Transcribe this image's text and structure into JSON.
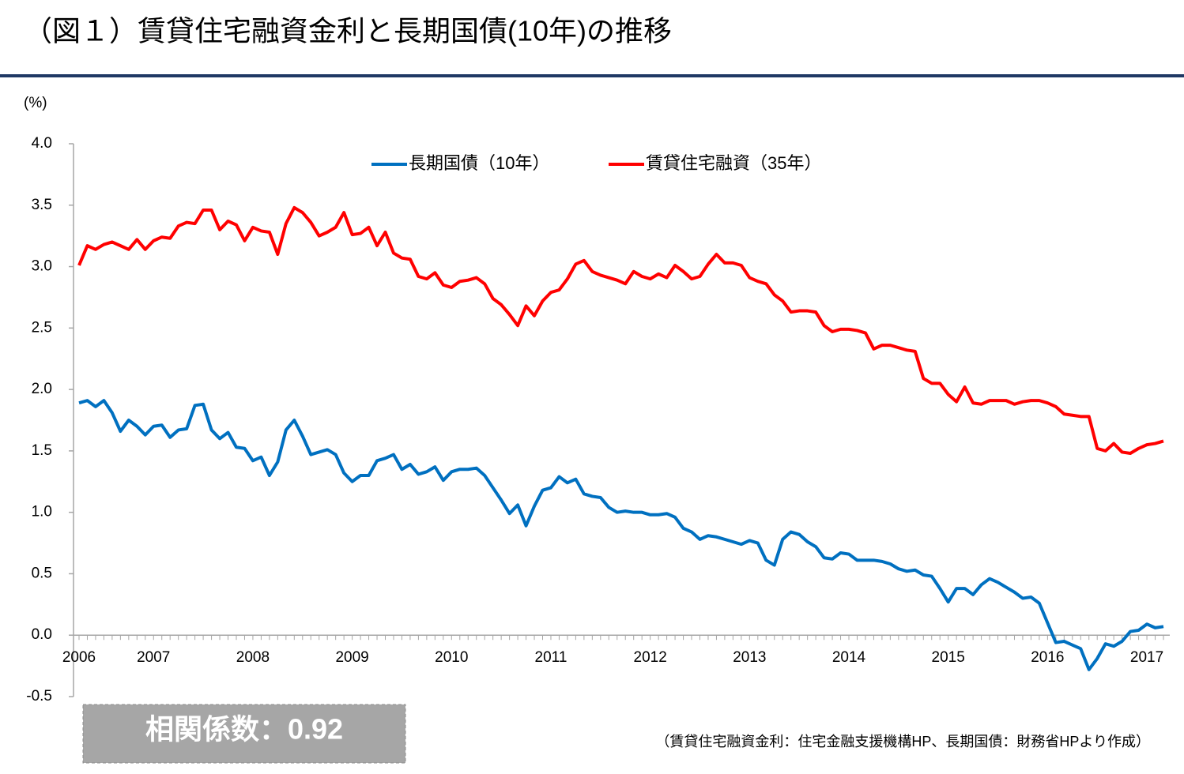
{
  "chart_data": {
    "type": "line",
    "title": "（図１）賃貸住宅融資金利と長期国債(10年)の推移",
    "y_unit": "(%)",
    "annotation": "相関係数：0.92",
    "source": "（賃貸住宅融資金利：住宅金融支援機構HP、長期国債：財務省HPより作成）",
    "legend": "top",
    "categories": [
      "2006",
      null,
      null,
      null,
      null,
      null,
      null,
      null,
      null,
      "2007",
      null,
      null,
      null,
      null,
      null,
      null,
      null,
      null,
      null,
      null,
      null,
      "2008",
      null,
      null,
      null,
      null,
      null,
      null,
      null,
      null,
      null,
      null,
      null,
      "2009",
      null,
      null,
      null,
      null,
      null,
      null,
      null,
      null,
      null,
      null,
      null,
      "2010",
      null,
      null,
      null,
      null,
      null,
      null,
      null,
      null,
      null,
      null,
      null,
      "2011",
      null,
      null,
      null,
      null,
      null,
      null,
      null,
      null,
      null,
      null,
      null,
      "2012",
      null,
      null,
      null,
      null,
      null,
      null,
      null,
      null,
      null,
      null,
      null,
      "2013",
      null,
      null,
      null,
      null,
      null,
      null,
      null,
      null,
      null,
      null,
      null,
      "2014",
      null,
      null,
      null,
      null,
      null,
      null,
      null,
      null,
      null,
      null,
      null,
      "2015",
      null,
      null,
      null,
      null,
      null,
      null,
      null,
      null,
      null,
      null,
      null,
      "2016",
      null,
      null,
      null,
      null,
      null,
      null,
      null,
      null,
      null,
      null,
      null,
      "2017",
      null,
      null
    ],
    "series": [
      {
        "name": "長期国債（10年）",
        "color": "#0070c0",
        "values": [
          1.89,
          1.91,
          1.86,
          1.91,
          1.81,
          1.66,
          1.75,
          1.7,
          1.63,
          1.7,
          1.71,
          1.61,
          1.67,
          1.68,
          1.87,
          1.88,
          1.67,
          1.6,
          1.65,
          1.53,
          1.52,
          1.42,
          1.45,
          1.3,
          1.41,
          1.67,
          1.75,
          1.62,
          1.47,
          1.49,
          1.51,
          1.47,
          1.32,
          1.25,
          1.3,
          1.3,
          1.42,
          1.44,
          1.47,
          1.35,
          1.39,
          1.31,
          1.33,
          1.37,
          1.26,
          1.33,
          1.35,
          1.35,
          1.36,
          1.3,
          1.2,
          1.1,
          0.99,
          1.06,
          0.89,
          1.05,
          1.18,
          1.2,
          1.29,
          1.24,
          1.27,
          1.15,
          1.13,
          1.12,
          1.04,
          1.0,
          1.01,
          1.0,
          1.0,
          0.98,
          0.98,
          0.99,
          0.96,
          0.87,
          0.84,
          0.78,
          0.81,
          0.8,
          0.78,
          0.76,
          0.74,
          0.77,
          0.75,
          0.61,
          0.57,
          0.78,
          0.84,
          0.82,
          0.76,
          0.72,
          0.63,
          0.62,
          0.67,
          0.66,
          0.61,
          0.61,
          0.61,
          0.6,
          0.58,
          0.54,
          0.52,
          0.53,
          0.49,
          0.48,
          0.38,
          0.27,
          0.38,
          0.38,
          0.33,
          0.41,
          0.46,
          0.43,
          0.39,
          0.35,
          0.3,
          0.31,
          0.26,
          0.1,
          -0.06,
          -0.05,
          -0.08,
          -0.11,
          -0.28,
          -0.19,
          -0.07,
          -0.09,
          -0.05,
          0.03,
          0.04,
          0.09,
          0.06,
          0.07
        ]
      },
      {
        "name": "賃貸住宅融資（35年）",
        "color": "#ff0000",
        "values": [
          3.01,
          3.17,
          3.14,
          3.18,
          3.2,
          3.17,
          3.14,
          3.22,
          3.14,
          3.21,
          3.24,
          3.23,
          3.33,
          3.36,
          3.35,
          3.46,
          3.46,
          3.3,
          3.37,
          3.34,
          3.21,
          3.32,
          3.29,
          3.28,
          3.1,
          3.35,
          3.48,
          3.44,
          3.36,
          3.25,
          3.28,
          3.32,
          3.44,
          3.26,
          3.27,
          3.32,
          3.17,
          3.28,
          3.11,
          3.07,
          3.06,
          2.92,
          2.9,
          2.95,
          2.85,
          2.83,
          2.88,
          2.89,
          2.91,
          2.86,
          2.74,
          2.69,
          2.61,
          2.52,
          2.68,
          2.6,
          2.72,
          2.79,
          2.81,
          2.9,
          3.02,
          3.05,
          2.96,
          2.93,
          2.91,
          2.89,
          2.86,
          2.96,
          2.92,
          2.9,
          2.94,
          2.91,
          3.01,
          2.96,
          2.9,
          2.92,
          3.02,
          3.1,
          3.03,
          3.03,
          3.01,
          2.91,
          2.88,
          2.86,
          2.77,
          2.72,
          2.63,
          2.64,
          2.64,
          2.63,
          2.52,
          2.47,
          2.49,
          2.49,
          2.48,
          2.46,
          2.33,
          2.36,
          2.36,
          2.34,
          2.32,
          2.31,
          2.09,
          2.05,
          2.05,
          1.96,
          1.9,
          2.02,
          1.89,
          1.88,
          1.91,
          1.91,
          1.91,
          1.88,
          1.9,
          1.91,
          1.91,
          1.89,
          1.86,
          1.8,
          1.79,
          1.78,
          1.78,
          1.52,
          1.5,
          1.56,
          1.49,
          1.48,
          1.52,
          1.55,
          1.56,
          1.58
        ]
      }
    ],
    "ylim": [
      -0.5,
      4.0
    ],
    "yticks": [
      {
        "value": 4,
        "label": "4.0"
      },
      3.5,
      {
        "value": 3,
        "label": "3.0"
      },
      2.5,
      {
        "value": 2,
        "label": "2.0"
      },
      1.5,
      {
        "value": 1,
        "label": "1.0"
      },
      0.5,
      {
        "value": 0,
        "label": "0.0"
      },
      -0.5
    ]
  }
}
